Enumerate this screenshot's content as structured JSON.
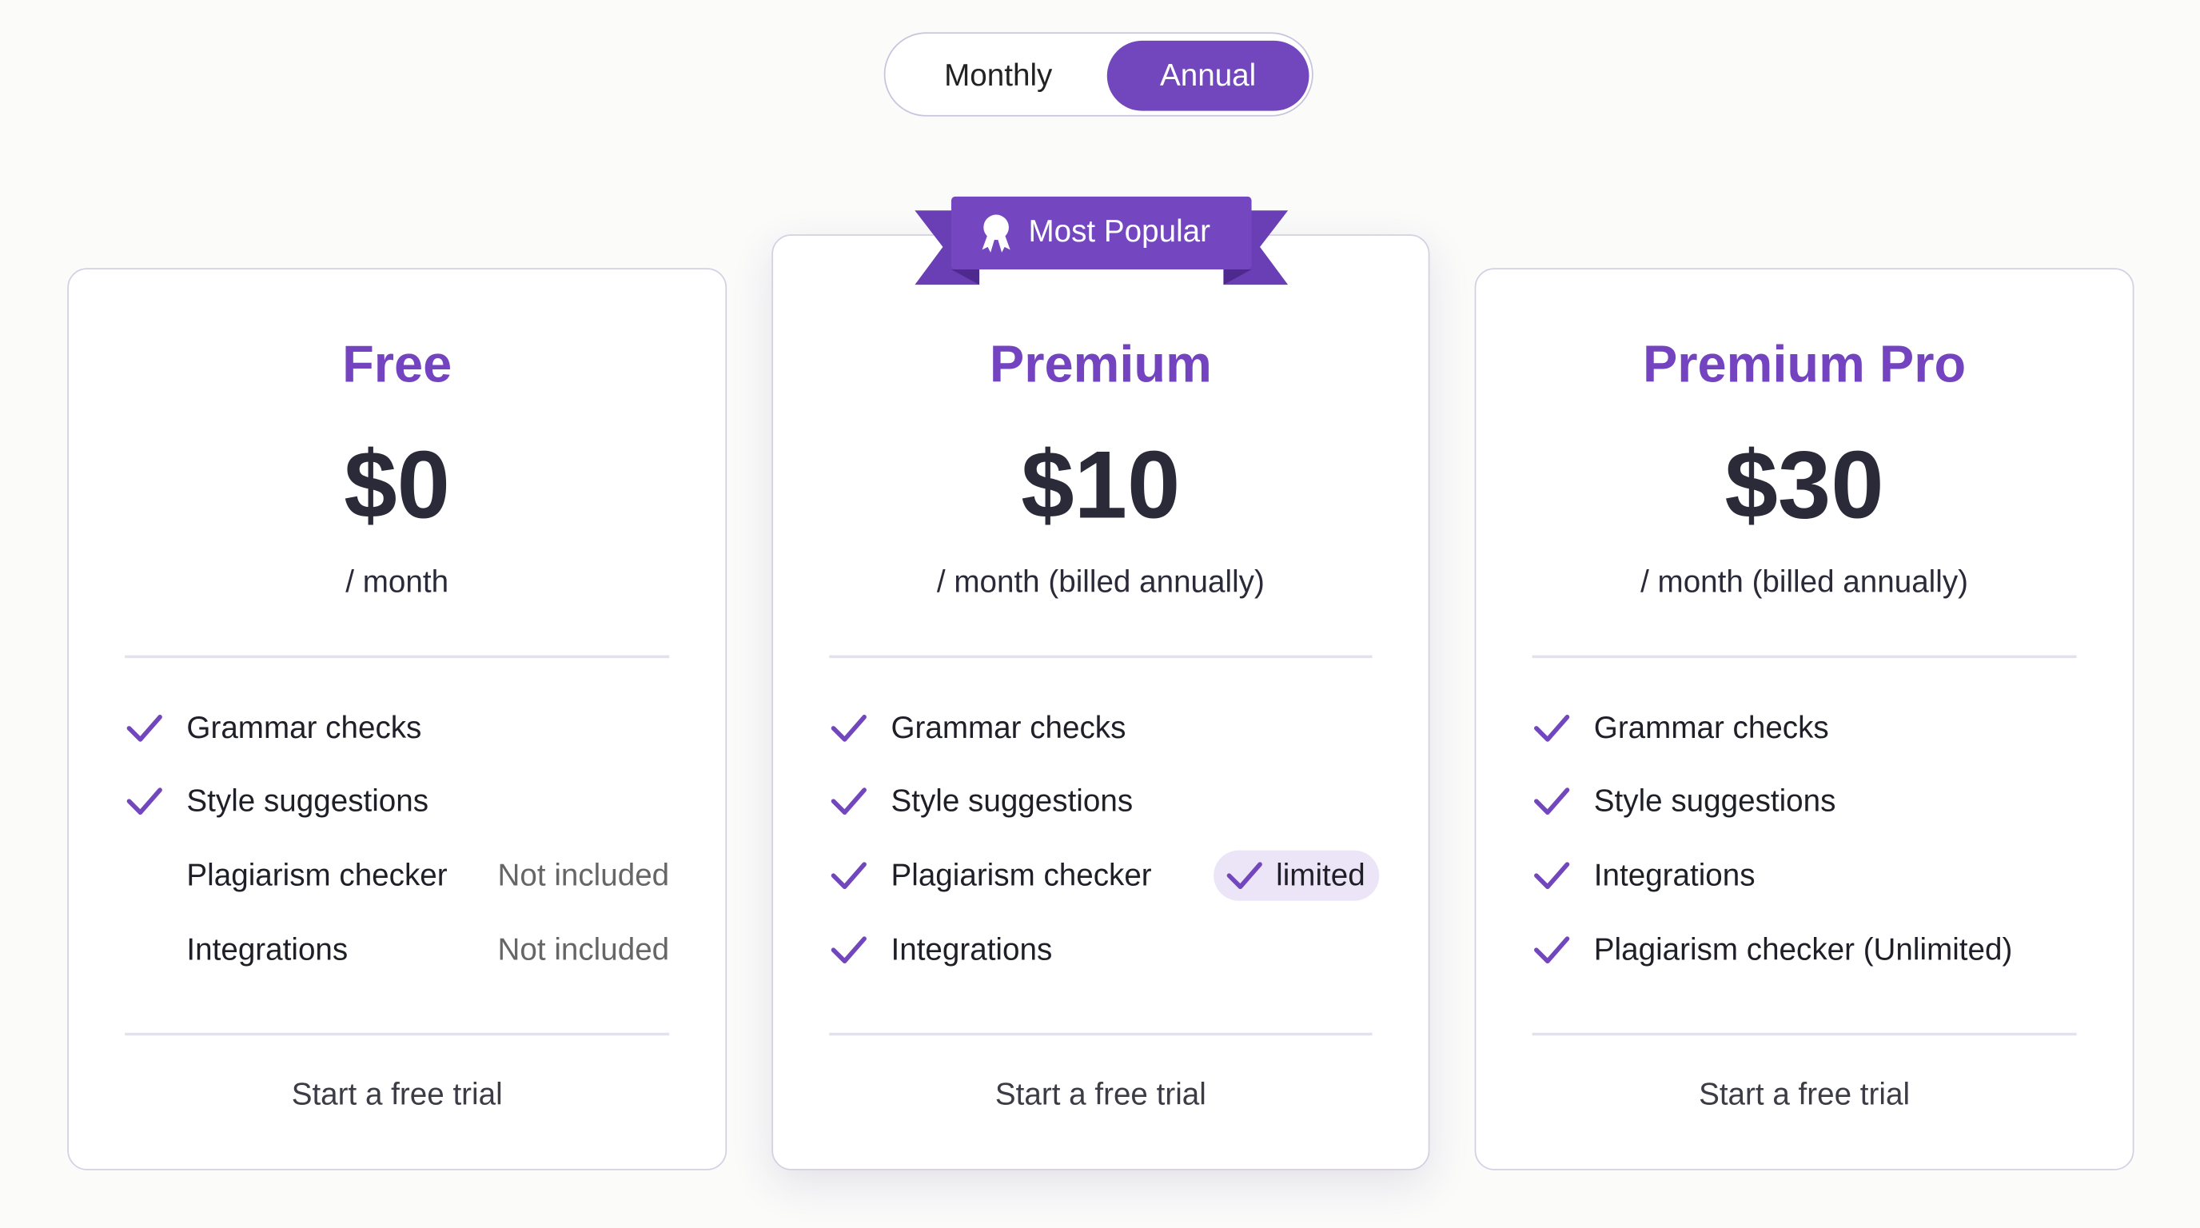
{
  "billing_toggle": {
    "options": [
      "Monthly",
      "Annual"
    ],
    "selected": "Annual"
  },
  "accent_color": "#7246bd",
  "badge": {
    "label": "Most Popular",
    "icon": "award-ribbon-icon"
  },
  "plans": [
    {
      "name": "Free",
      "price": "$0",
      "period": "/ month",
      "features": [
        {
          "label": "Grammar checks",
          "included": true
        },
        {
          "label": "Style suggestions",
          "included": true
        },
        {
          "label": "Plagiarism checker",
          "included": false,
          "note": "Not included"
        },
        {
          "label": "Integrations",
          "included": false,
          "note": "Not included"
        }
      ],
      "cta": "Start a free trial"
    },
    {
      "name": "Premium",
      "price": "$10",
      "period": "/ month (billed annually)",
      "featured": true,
      "features": [
        {
          "label": "Grammar checks",
          "included": true
        },
        {
          "label": "Style suggestions",
          "included": true
        },
        {
          "label": "Plagiarism checker",
          "included": true,
          "note": "limited"
        },
        {
          "label": "Integrations",
          "included": true
        }
      ],
      "cta": "Start a free trial"
    },
    {
      "name": "Premium Pro",
      "price": "$30",
      "period": "/ month (billed annually)",
      "features": [
        {
          "label": "Grammar checks",
          "included": true
        },
        {
          "label": "Style suggestions",
          "included": true
        },
        {
          "label": "Integrations",
          "included": true
        },
        {
          "label": "Plagiarism checker (Unlimited)",
          "included": true
        }
      ],
      "cta": "Start a free trial"
    }
  ]
}
